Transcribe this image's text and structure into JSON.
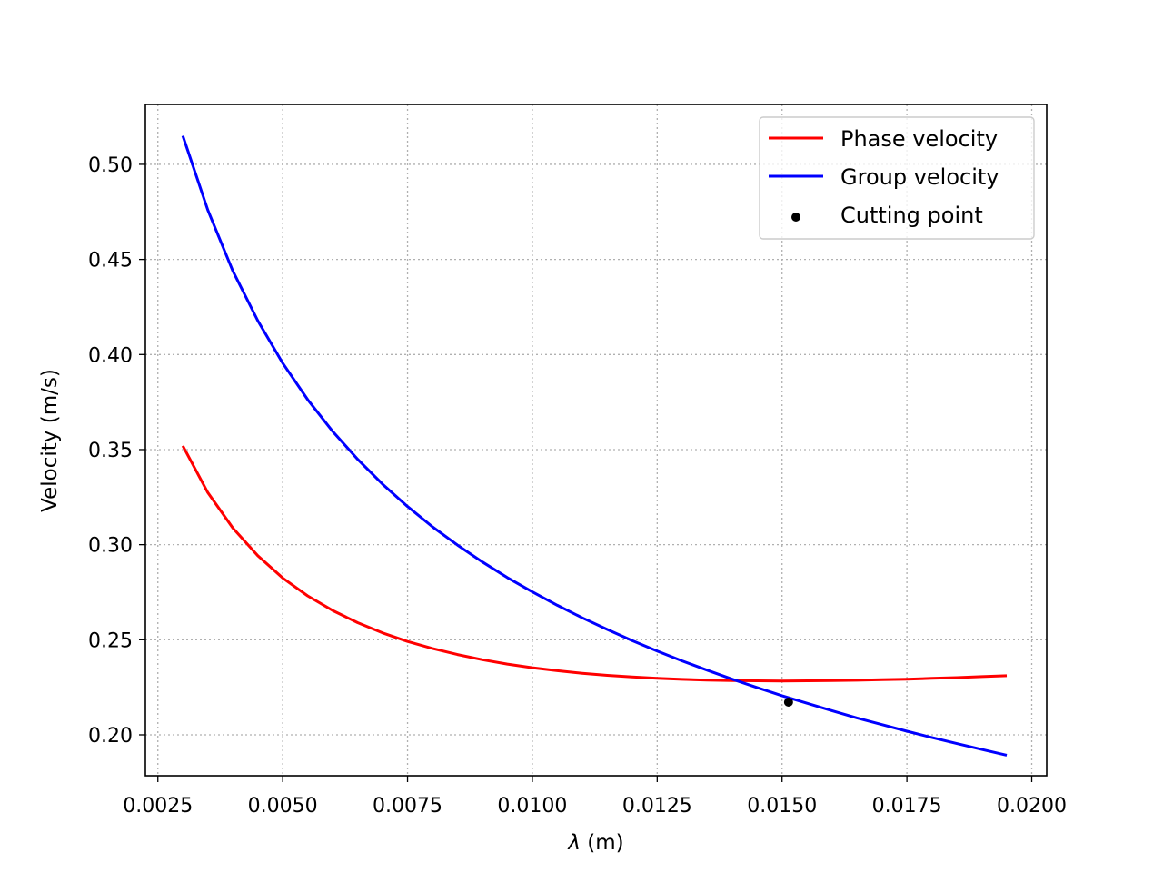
{
  "chart_data": {
    "type": "line",
    "title": "",
    "xlabel_symbol": "λ",
    "xlabel_unit": " (m)",
    "ylabel": "Velocity (m/s)",
    "xlim": [
      0.00225,
      0.0203
    ],
    "ylim": [
      0.1785,
      0.5315
    ],
    "xticks": [
      0.0025,
      0.005,
      0.0075,
      0.01,
      0.0125,
      0.015,
      0.0175,
      0.02
    ],
    "xtick_labels": [
      "0.0025",
      "0.0050",
      "0.0075",
      "0.0100",
      "0.0125",
      "0.0150",
      "0.0175",
      "0.0200"
    ],
    "yticks": [
      0.2,
      0.25,
      0.3,
      0.35,
      0.4,
      0.45,
      0.5
    ],
    "ytick_labels": [
      "0.20",
      "0.25",
      "0.30",
      "0.35",
      "0.40",
      "0.45",
      "0.50"
    ],
    "grid": true,
    "legend_position": "top-right",
    "x": [
      0.003,
      0.0035,
      0.004,
      0.0045,
      0.005,
      0.0055,
      0.006,
      0.0065,
      0.007,
      0.0075,
      0.008,
      0.0085,
      0.009,
      0.0095,
      0.01,
      0.0105,
      0.011,
      0.0115,
      0.012,
      0.0125,
      0.013,
      0.0135,
      0.014,
      0.0145,
      0.015,
      0.0155,
      0.016,
      0.0165,
      0.017,
      0.0175,
      0.018,
      0.0185,
      0.019,
      0.0195
    ],
    "series": [
      {
        "name": "Phase velocity",
        "color": "#ff0000",
        "values": [
          0.352,
          0.3274,
          0.3088,
          0.2942,
          0.2825,
          0.2731,
          0.2654,
          0.259,
          0.2536,
          0.2491,
          0.2454,
          0.2422,
          0.2395,
          0.2372,
          0.2353,
          0.2337,
          0.2324,
          0.2313,
          0.2304,
          0.2297,
          0.2292,
          0.2288,
          0.2285,
          0.2284,
          0.2283,
          0.2284,
          0.2285,
          0.2287,
          0.229,
          0.2293,
          0.2297,
          0.2301,
          0.2306,
          0.2311
        ]
      },
      {
        "name": "Group velocity",
        "color": "#0000ff",
        "values": [
          0.515,
          0.476,
          0.444,
          0.4178,
          0.3955,
          0.3763,
          0.3596,
          0.3449,
          0.3318,
          0.3201,
          0.3094,
          0.2998,
          0.2909,
          0.2827,
          0.2752,
          0.2681,
          0.2615,
          0.2554,
          0.2496,
          0.2441,
          0.2389,
          0.234,
          0.2293,
          0.2249,
          0.2206,
          0.2166,
          0.2127,
          0.2089,
          0.2054,
          0.2019,
          0.1986,
          0.1954,
          0.1923,
          0.1893
        ]
      }
    ],
    "point": {
      "name": "Cutting point",
      "color": "#000000",
      "x": 0.01513,
      "y": 0.2172
    }
  }
}
